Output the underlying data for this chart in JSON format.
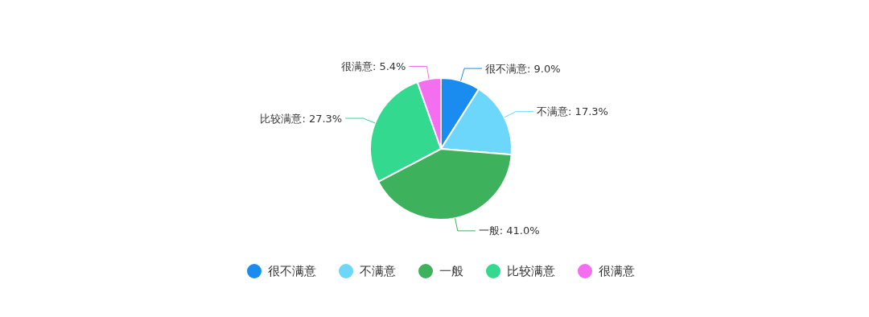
{
  "chart_data": {
    "type": "pie",
    "categories": [
      "很不满意",
      "不满意",
      "一般",
      "比较满意",
      "很满意"
    ],
    "values": [
      9.0,
      17.3,
      41.0,
      27.3,
      5.4
    ],
    "colors": [
      "#1a8cf0",
      "#6cd6fb",
      "#3eb15c",
      "#33d98f",
      "#f46ef0"
    ],
    "value_labels": [
      "很不满意: 9.0%",
      "不满意: 17.3%",
      "一般: 41.0%",
      "比较满意: 27.3%",
      "很满意: 5.4%"
    ],
    "legend": "bottom"
  }
}
